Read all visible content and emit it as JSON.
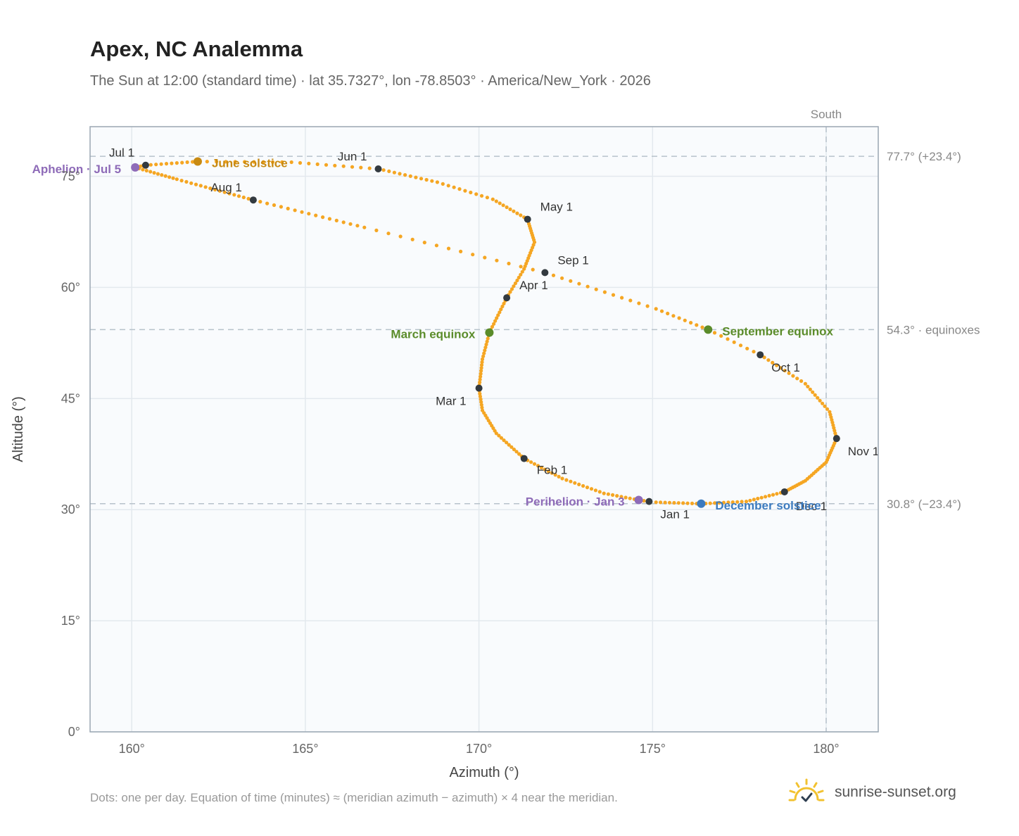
{
  "header": {
    "title": "Apex, NC Analemma",
    "subtitle": "The Sun at 12:00 (standard time) · lat 35.7327°, lon -78.8503° · America/New_York · 2026"
  },
  "footer": {
    "note": "Dots: one per day. Equation of time (minutes) ≈ (meridian azimuth − azimuth) × 4 near the meridian.",
    "brand": "sunrise-sunset.org",
    "brand_icon": "sun-check-icon"
  },
  "colors": {
    "curve": "#F5A623",
    "month_dot": "#333a40",
    "june_solstice": "#C88A12",
    "december_solstice": "#3C7BBF",
    "equinox": "#5B8C2A",
    "apsis": "#8E6BB8",
    "plot_bg": "#F9FBFD",
    "grid": "#E3E9EE",
    "ref_line": "#B7C2CB"
  },
  "chart_data": {
    "type": "scatter",
    "xlabel": "Azimuth (°)",
    "ylabel": "Altitude (°)",
    "xlim": [
      158.8,
      181.5
    ],
    "ylim": [
      0,
      81.7
    ],
    "xticks": [
      160,
      165,
      170,
      175,
      180
    ],
    "yticks": [
      0,
      15,
      30,
      45,
      60,
      75
    ],
    "x_tick_suffix": "°",
    "y_tick_suffix": "°",
    "grid": true,
    "meridian": {
      "azimuth": 180,
      "label": "South"
    },
    "reference_lines": [
      {
        "altitude": 77.7,
        "label": "77.7° (+23.4°)"
      },
      {
        "altitude": 54.3,
        "label": "54.3° · equinoxes"
      },
      {
        "altitude": 30.8,
        "label": "30.8° (−23.4°)"
      }
    ],
    "path_anchors": [
      {
        "day": 1,
        "az": 174.9,
        "alt": 31.1
      },
      {
        "day": 3,
        "az": 174.6,
        "alt": 31.3
      },
      {
        "day": 11,
        "az": 173.6,
        "alt": 32.2
      },
      {
        "day": 21,
        "az": 172.4,
        "alt": 34.2
      },
      {
        "day": 32,
        "az": 171.3,
        "alt": 36.9
      },
      {
        "day": 43,
        "az": 170.5,
        "alt": 40.3
      },
      {
        "day": 52,
        "az": 170.1,
        "alt": 43.4
      },
      {
        "day": 60,
        "az": 170.0,
        "alt": 46.4
      },
      {
        "day": 70,
        "az": 170.1,
        "alt": 50.3
      },
      {
        "day": 79,
        "az": 170.3,
        "alt": 53.9
      },
      {
        "day": 91,
        "az": 170.8,
        "alt": 58.6
      },
      {
        "day": 101,
        "az": 171.3,
        "alt": 62.5
      },
      {
        "day": 111,
        "az": 171.6,
        "alt": 66.1
      },
      {
        "day": 121,
        "az": 171.4,
        "alt": 69.2
      },
      {
        "day": 131,
        "az": 170.4,
        "alt": 71.9
      },
      {
        "day": 141,
        "az": 168.8,
        "alt": 74.2
      },
      {
        "day": 152,
        "az": 167.1,
        "alt": 76.0
      },
      {
        "day": 162,
        "az": 164.6,
        "alt": 76.9
      },
      {
        "day": 172,
        "az": 161.9,
        "alt": 77.0
      },
      {
        "day": 182,
        "az": 160.4,
        "alt": 76.5
      },
      {
        "day": 186,
        "az": 160.1,
        "alt": 76.2
      },
      {
        "day": 197,
        "az": 161.3,
        "alt": 74.6
      },
      {
        "day": 213,
        "az": 163.5,
        "alt": 71.8
      },
      {
        "day": 229,
        "az": 166.7,
        "alt": 68.1
      },
      {
        "day": 244,
        "az": 171.9,
        "alt": 62.0
      },
      {
        "day": 257,
        "az": 175.1,
        "alt": 57.1
      },
      {
        "day": 266,
        "az": 176.6,
        "alt": 54.3
      },
      {
        "day": 274,
        "az": 178.1,
        "alt": 50.9
      },
      {
        "day": 285,
        "az": 179.4,
        "alt": 47.0
      },
      {
        "day": 295,
        "az": 180.1,
        "alt": 43.2
      },
      {
        "day": 305,
        "az": 180.3,
        "alt": 39.6
      },
      {
        "day": 315,
        "az": 180.0,
        "alt": 36.4
      },
      {
        "day": 325,
        "az": 179.4,
        "alt": 33.9
      },
      {
        "day": 335,
        "az": 178.8,
        "alt": 32.4
      },
      {
        "day": 345,
        "az": 177.7,
        "alt": 31.1
      },
      {
        "day": 355,
        "az": 176.4,
        "alt": 30.8
      },
      {
        "day": 365,
        "az": 175.1,
        "alt": 31.0
      }
    ],
    "months": [
      {
        "label": "Jan 1",
        "az": 174.9,
        "alt": 31.1,
        "anchor": "start",
        "dx": 16,
        "dy": 24
      },
      {
        "label": "Feb 1",
        "az": 171.3,
        "alt": 36.9,
        "anchor": "start",
        "dx": 18,
        "dy": 22
      },
      {
        "label": "Mar 1",
        "az": 170.0,
        "alt": 46.4,
        "anchor": "end",
        "dx": -18,
        "dy": 24
      },
      {
        "label": "Apr 1",
        "az": 170.8,
        "alt": 58.6,
        "anchor": "start",
        "dx": 18,
        "dy": -12
      },
      {
        "label": "May 1",
        "az": 171.4,
        "alt": 69.2,
        "anchor": "start",
        "dx": 18,
        "dy": -12
      },
      {
        "label": "Jun 1",
        "az": 167.1,
        "alt": 76.0,
        "anchor": "end",
        "dx": -16,
        "dy": -12
      },
      {
        "label": "Jul 1",
        "az": 160.4,
        "alt": 76.5,
        "anchor": "end",
        "dx": -16,
        "dy": -12
      },
      {
        "label": "Aug 1",
        "az": 163.5,
        "alt": 71.8,
        "anchor": "end",
        "dx": -16,
        "dy": -12
      },
      {
        "label": "Sep 1",
        "az": 171.9,
        "alt": 62.0,
        "anchor": "start",
        "dx": 18,
        "dy": -12
      },
      {
        "label": "Oct 1",
        "az": 178.1,
        "alt": 50.9,
        "anchor": "start",
        "dx": 16,
        "dy": 24
      },
      {
        "label": "Nov 1",
        "az": 180.3,
        "alt": 39.6,
        "anchor": "start",
        "dx": 16,
        "dy": 24
      },
      {
        "label": "Dec 1",
        "az": 178.8,
        "alt": 32.4,
        "anchor": "start",
        "dx": 16,
        "dy": 26
      }
    ],
    "events": [
      {
        "label": "June solstice",
        "az": 161.9,
        "alt": 77.0,
        "color": "#C88A12",
        "anchor": "start",
        "dx": 20,
        "dy": 8
      },
      {
        "label": "Aphelion · Jul 5",
        "az": 160.1,
        "alt": 76.2,
        "color": "#8E6BB8",
        "anchor": "end",
        "dx": -20,
        "dy": 8
      },
      {
        "label": "March equinox",
        "az": 170.3,
        "alt": 53.9,
        "color": "#5B8C2A",
        "anchor": "end",
        "dx": -20,
        "dy": 8
      },
      {
        "label": "September equinox",
        "az": 176.6,
        "alt": 54.3,
        "color": "#5B8C2A",
        "anchor": "start",
        "dx": 20,
        "dy": 8
      },
      {
        "label": "Perihelion · Jan 3",
        "az": 174.6,
        "alt": 31.3,
        "color": "#8E6BB8",
        "anchor": "end",
        "dx": -20,
        "dy": 8
      },
      {
        "label": "December solstice",
        "az": 176.4,
        "alt": 30.8,
        "color": "#3C7BBF",
        "anchor": "start",
        "dx": 20,
        "dy": 8
      }
    ]
  }
}
